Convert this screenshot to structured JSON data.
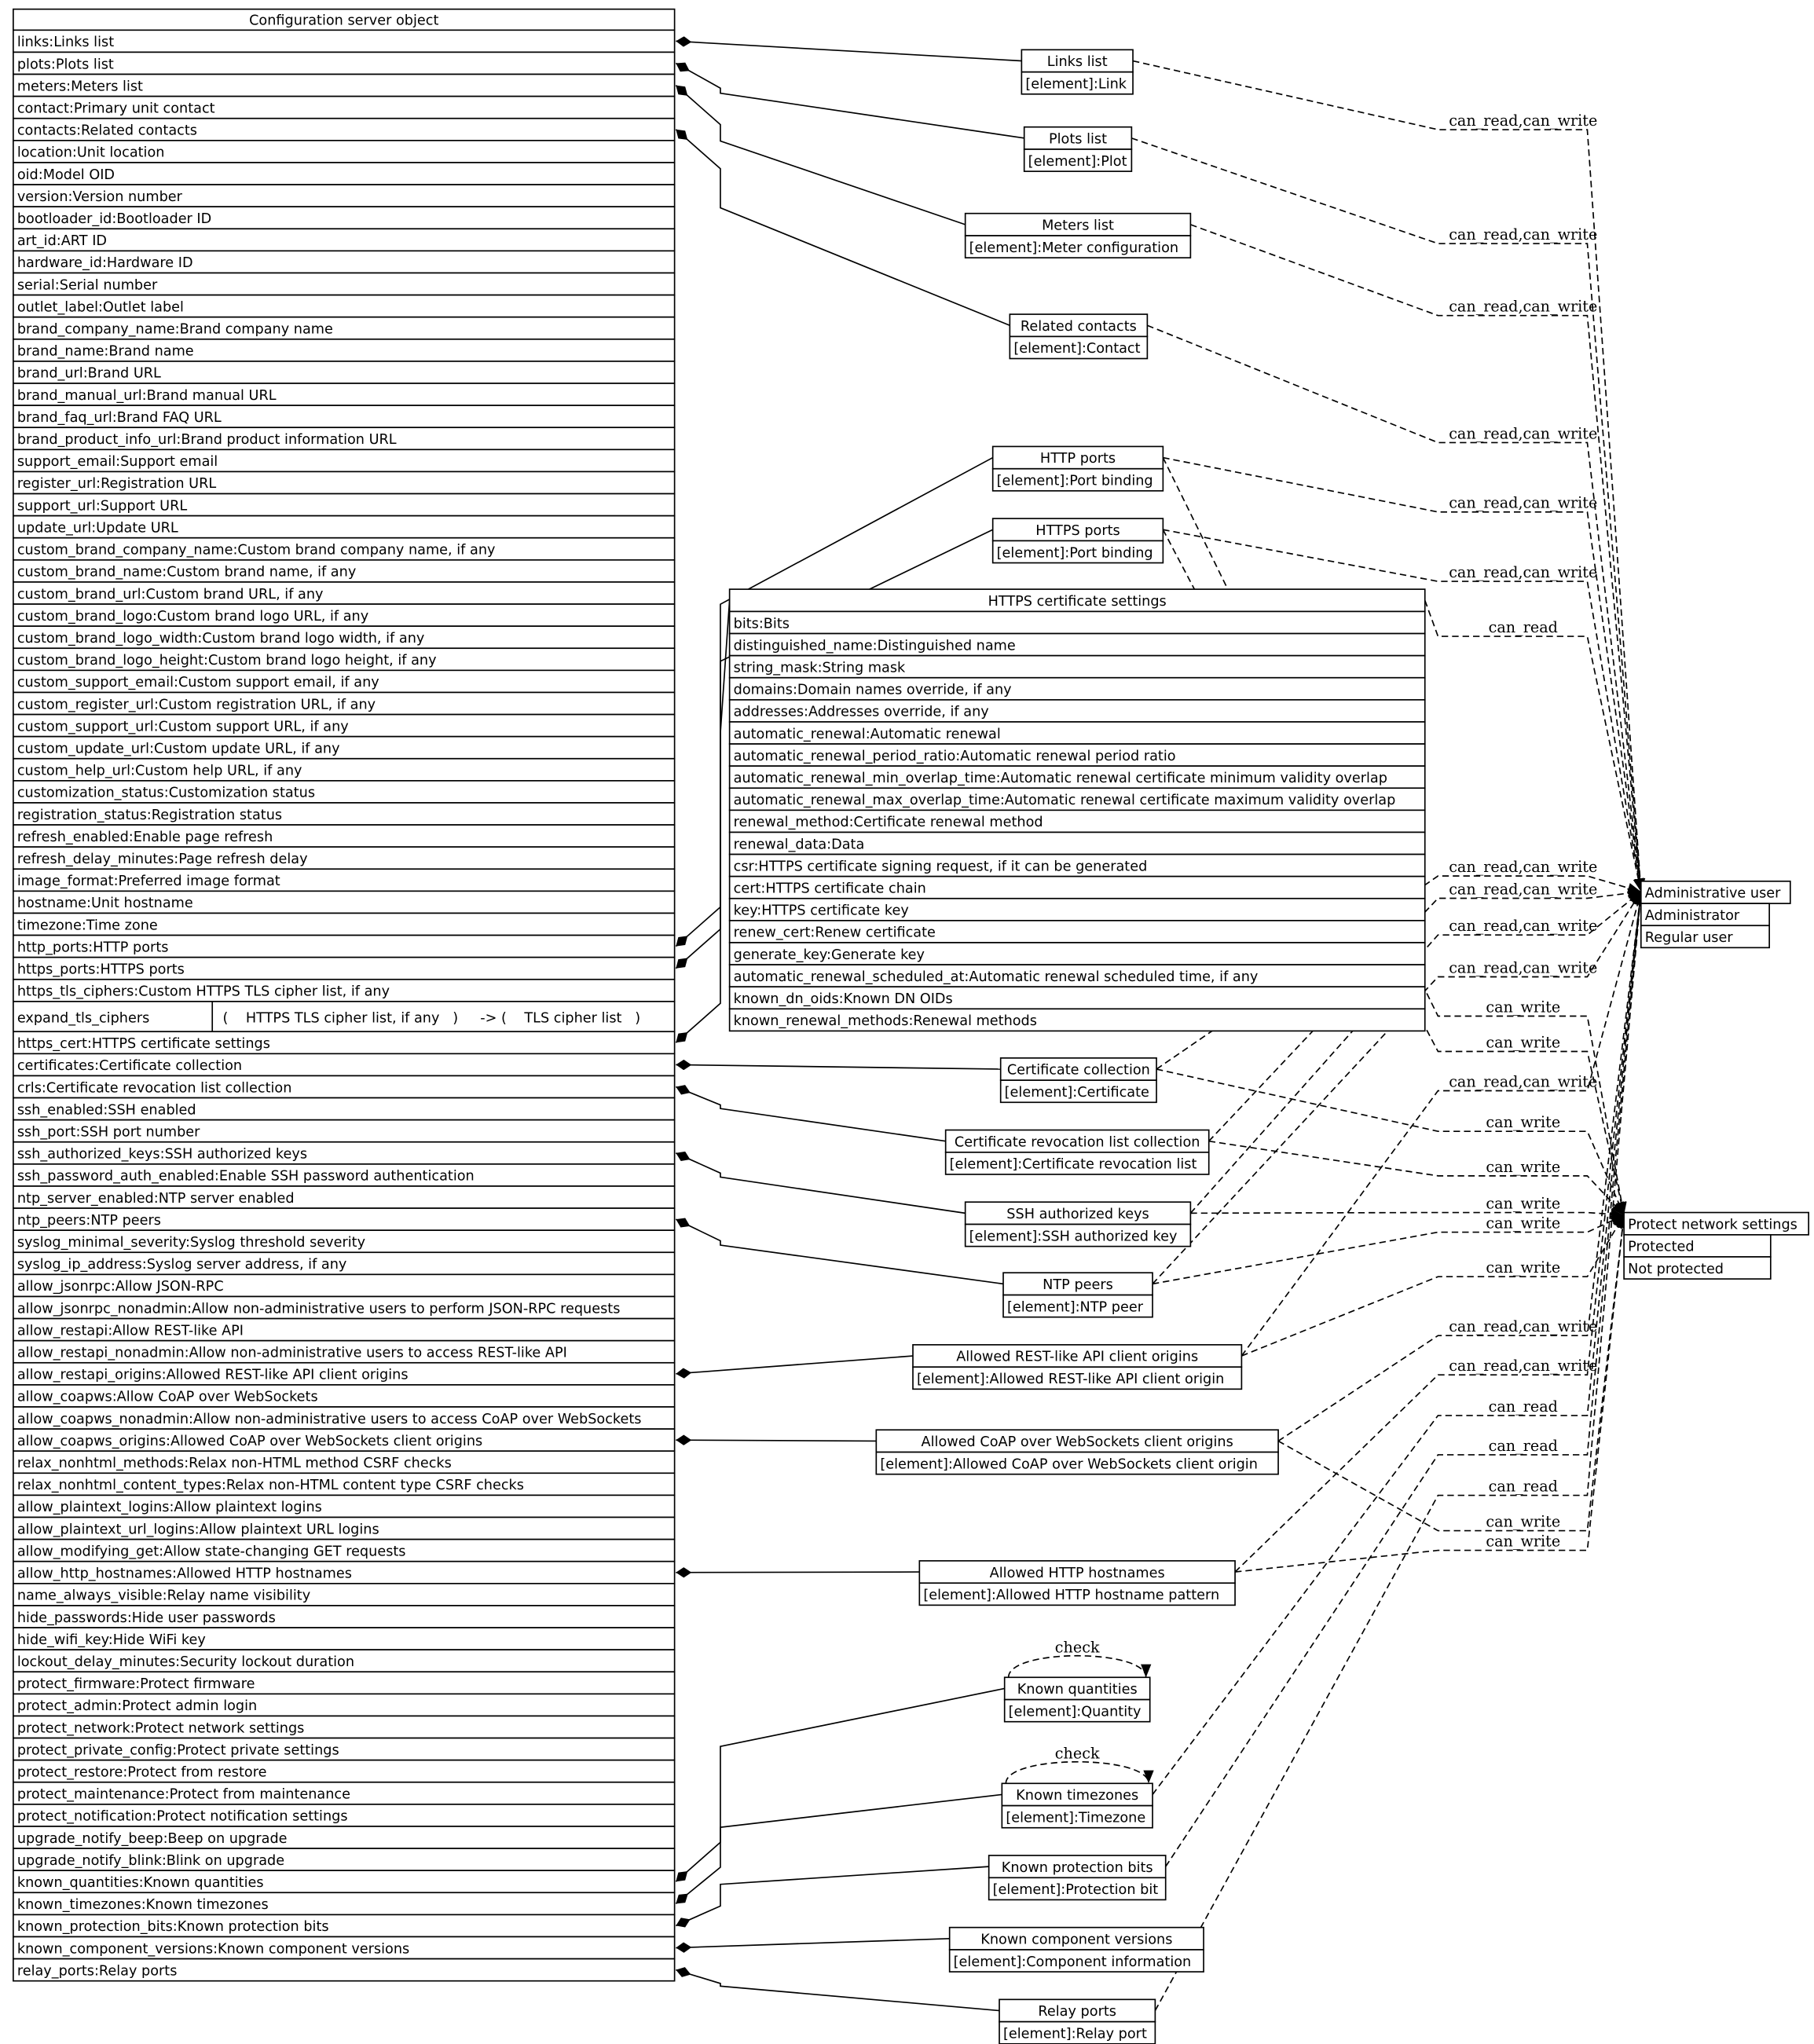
{
  "main_table": {
    "title": "Configuration server object",
    "rows_before": [
      "links:Links list",
      "plots:Plots list",
      "meters:Meters list",
      "contact:Primary unit contact",
      "contacts:Related contacts",
      "location:Unit location",
      "oid:Model OID",
      "version:Version number",
      "bootloader_id:Bootloader ID",
      "art_id:ART ID",
      "hardware_id:Hardware ID",
      "serial:Serial number",
      "outlet_label:Outlet label",
      "brand_company_name:Brand company name",
      "brand_name:Brand name",
      "brand_url:Brand URL",
      "brand_manual_url:Brand manual URL",
      "brand_faq_url:Brand FAQ URL",
      "brand_product_info_url:Brand product information URL",
      "support_email:Support email",
      "register_url:Registration URL",
      "support_url:Support URL",
      "update_url:Update URL",
      "custom_brand_company_name:Custom brand company name, if any",
      "custom_brand_name:Custom brand name, if any",
      "custom_brand_url:Custom brand URL, if any",
      "custom_brand_logo:Custom brand logo URL, if any",
      "custom_brand_logo_width:Custom brand logo width, if any",
      "custom_brand_logo_height:Custom brand logo height, if any",
      "custom_support_email:Custom support email, if any",
      "custom_register_url:Custom registration URL, if any",
      "custom_support_url:Custom support URL, if any",
      "custom_update_url:Custom update URL, if any",
      "custom_help_url:Custom help URL, if any",
      "customization_status:Customization status",
      "registration_status:Registration status",
      "refresh_enabled:Enable page refresh",
      "refresh_delay_minutes:Page refresh delay",
      "image_format:Preferred image format",
      "hostname:Unit hostname",
      "timezone:Time zone",
      "http_ports:HTTP ports",
      "https_ports:HTTPS ports",
      "https_tls_ciphers:Custom HTTPS TLS cipher list, if any"
    ],
    "expand_row": {
      "name": "expand_tls_ciphers",
      "value": "(    HTTPS TLS cipher list, if any   )     -> (    TLS cipher list   )"
    },
    "rows_after": [
      "https_cert:HTTPS certificate settings",
      "certificates:Certificate collection",
      "crls:Certificate revocation list collection",
      "ssh_enabled:SSH enabled",
      "ssh_port:SSH port number",
      "ssh_authorized_keys:SSH authorized keys",
      "ssh_password_auth_enabled:Enable SSH password authentication",
      "ntp_server_enabled:NTP server enabled",
      "ntp_peers:NTP peers",
      "syslog_minimal_severity:Syslog threshold severity",
      "syslog_ip_address:Syslog server address, if any",
      "allow_jsonrpc:Allow JSON-RPC",
      "allow_jsonrpc_nonadmin:Allow non-administrative users to perform JSON-RPC requests",
      "allow_restapi:Allow REST-like API",
      "allow_restapi_nonadmin:Allow non-administrative users to access REST-like API",
      "allow_restapi_origins:Allowed REST-like API client origins",
      "allow_coapws:Allow CoAP over WebSockets",
      "allow_coapws_nonadmin:Allow non-administrative users to access CoAP over WebSockets",
      "allow_coapws_origins:Allowed CoAP over WebSockets client origins",
      "relax_nonhtml_methods:Relax non-HTML method CSRF checks",
      "relax_nonhtml_content_types:Relax non-HTML content type CSRF checks",
      "allow_plaintext_logins:Allow plaintext logins",
      "allow_plaintext_url_logins:Allow plaintext URL logins",
      "allow_modifying_get:Allow state-changing GET requests",
      "allow_http_hostnames:Allowed HTTP hostnames",
      "name_always_visible:Relay name visibility",
      "hide_passwords:Hide user passwords",
      "hide_wifi_key:Hide WiFi key",
      "lockout_delay_minutes:Security lockout duration",
      "protect_firmware:Protect firmware",
      "protect_admin:Protect admin login",
      "protect_network:Protect network settings",
      "protect_private_config:Protect private settings",
      "protect_restore:Protect from restore",
      "protect_maintenance:Protect from maintenance",
      "protect_notification:Protect notification settings",
      "upgrade_notify_beep:Beep on upgrade",
      "upgrade_notify_blink:Blink on upgrade",
      "known_quantities:Known quantities",
      "known_timezones:Known timezones",
      "known_protection_bits:Known protection bits",
      "known_component_versions:Known component versions",
      "relay_ports:Relay ports"
    ]
  },
  "boxes": [
    {
      "id": "links",
      "title": "Links list",
      "rows": [
        "[element]:Link"
      ]
    },
    {
      "id": "plots",
      "title": "Plots list",
      "rows": [
        "[element]:Plot"
      ]
    },
    {
      "id": "meters",
      "title": "Meters list",
      "rows": [
        "[element]:Meter configuration"
      ]
    },
    {
      "id": "contacts",
      "title": "Related contacts",
      "rows": [
        "[element]:Contact"
      ]
    },
    {
      "id": "http",
      "title": "HTTP ports",
      "rows": [
        "[element]:Port binding"
      ]
    },
    {
      "id": "https",
      "title": "HTTPS ports",
      "rows": [
        "[element]:Port binding"
      ]
    },
    {
      "id": "cert",
      "title": "HTTPS certificate settings",
      "rows": [
        "bits:Bits",
        "distinguished_name:Distinguished name",
        "string_mask:String mask",
        "domains:Domain names override, if any",
        "addresses:Addresses override, if any",
        "automatic_renewal:Automatic renewal",
        "automatic_renewal_period_ratio:Automatic renewal period ratio",
        "automatic_renewal_min_overlap_time:Automatic renewal certificate minimum validity overlap",
        "automatic_renewal_max_overlap_time:Automatic renewal certificate maximum validity overlap",
        "renewal_method:Certificate renewal method",
        "renewal_data:Data",
        "csr:HTTPS certificate signing request, if it can be generated",
        "cert:HTTPS certificate chain",
        "key:HTTPS certificate key",
        "renew_cert:Renew certificate",
        "generate_key:Generate key",
        "automatic_renewal_scheduled_at:Automatic renewal scheduled time, if any",
        "known_dn_oids:Known DN OIDs",
        "known_renewal_methods:Renewal methods"
      ]
    },
    {
      "id": "certs",
      "title": "Certificate collection",
      "rows": [
        "[element]:Certificate"
      ]
    },
    {
      "id": "crls",
      "title": "Certificate revocation list collection",
      "rows": [
        "[element]:Certificate revocation list"
      ]
    },
    {
      "id": "ssh",
      "title": "SSH authorized keys",
      "rows": [
        "[element]:SSH authorized key"
      ]
    },
    {
      "id": "ntp",
      "title": "NTP peers",
      "rows": [
        "[element]:NTP peer"
      ]
    },
    {
      "id": "rest",
      "title": "Allowed REST-like API client origins",
      "rows": [
        "[element]:Allowed REST-like API client origin"
      ]
    },
    {
      "id": "coap",
      "title": "Allowed CoAP over WebSockets client origins",
      "rows": [
        "[element]:Allowed CoAP over WebSockets client origin"
      ]
    },
    {
      "id": "hosts",
      "title": "Allowed HTTP hostnames",
      "rows": [
        "[element]:Allowed HTTP hostname pattern"
      ]
    },
    {
      "id": "quant",
      "title": "Known quantities",
      "rows": [
        "[element]:Quantity"
      ]
    },
    {
      "id": "tz",
      "title": "Known timezones",
      "rows": [
        "[element]:Timezone"
      ]
    },
    {
      "id": "pbits",
      "title": "Known protection bits",
      "rows": [
        "[element]:Protection bit"
      ]
    },
    {
      "id": "comp",
      "title": "Known component versions",
      "rows": [
        "[element]:Component information"
      ]
    },
    {
      "id": "relay",
      "title": "Relay ports",
      "rows": [
        "[element]:Relay port"
      ]
    },
    {
      "id": "admin",
      "title": "Administrative user",
      "rows": [
        "Administrator",
        "Regular user"
      ]
    },
    {
      "id": "protect",
      "title": "Protect network settings",
      "rows": [
        "Protected",
        "Not protected"
      ]
    }
  ],
  "compositions": [
    "links",
    "plots",
    "meters",
    "contacts",
    "http",
    "https",
    "cert",
    "certs",
    "crls",
    "ssh",
    "ntp",
    "rest",
    "coap",
    "hosts",
    "quant",
    "tz",
    "pbits",
    "comp",
    "relay"
  ],
  "permission_edges": [
    {
      "from": "links",
      "to": "admin",
      "label": "can_read,can_write"
    },
    {
      "from": "plots",
      "to": "admin",
      "label": "can_read,can_write"
    },
    {
      "from": "meters",
      "to": "admin",
      "label": "can_read,can_write"
    },
    {
      "from": "contacts",
      "to": "admin",
      "label": "can_read,can_write"
    },
    {
      "from": "http",
      "to": "admin",
      "label": "can_read,can_write"
    },
    {
      "from": "https",
      "to": "admin",
      "label": "can_read,can_write"
    },
    {
      "from": "cert",
      "to": "admin",
      "label": "can_read"
    },
    {
      "from": "certs",
      "to": "admin",
      "label": "can_read,can_write"
    },
    {
      "from": "crls",
      "to": "admin",
      "label": "can_read,can_write"
    },
    {
      "from": "ssh",
      "to": "admin",
      "label": "can_read,can_write"
    },
    {
      "from": "ntp",
      "to": "admin",
      "label": "can_read,can_write"
    },
    {
      "from": "http",
      "to": "protect",
      "label": "can_write"
    },
    {
      "from": "https",
      "to": "protect",
      "label": "can_write"
    },
    {
      "from": "rest",
      "to": "admin",
      "label": "can_read,can_write"
    },
    {
      "from": "certs",
      "to": "protect",
      "label": "can_write"
    },
    {
      "from": "crls",
      "to": "protect",
      "label": "can_write"
    },
    {
      "from": "ssh",
      "to": "protect",
      "label": "can_write"
    },
    {
      "from": "ntp",
      "to": "protect",
      "label": "can_write"
    },
    {
      "from": "rest",
      "to": "protect",
      "label": "can_write"
    },
    {
      "from": "coap",
      "to": "admin",
      "label": "can_read,can_write"
    },
    {
      "from": "hosts",
      "to": "admin",
      "label": "can_read,can_write"
    },
    {
      "from": "tz",
      "to": "admin",
      "label": "can_read"
    },
    {
      "from": "pbits",
      "to": "admin",
      "label": "can_read"
    },
    {
      "from": "relay",
      "to": "admin",
      "label": "can_read"
    },
    {
      "from": "coap",
      "to": "protect",
      "label": "can_write"
    },
    {
      "from": "hosts",
      "to": "protect",
      "label": "can_write"
    }
  ],
  "self_loops": [
    {
      "box": "quant",
      "label": "check"
    },
    {
      "box": "tz",
      "label": "check"
    }
  ]
}
